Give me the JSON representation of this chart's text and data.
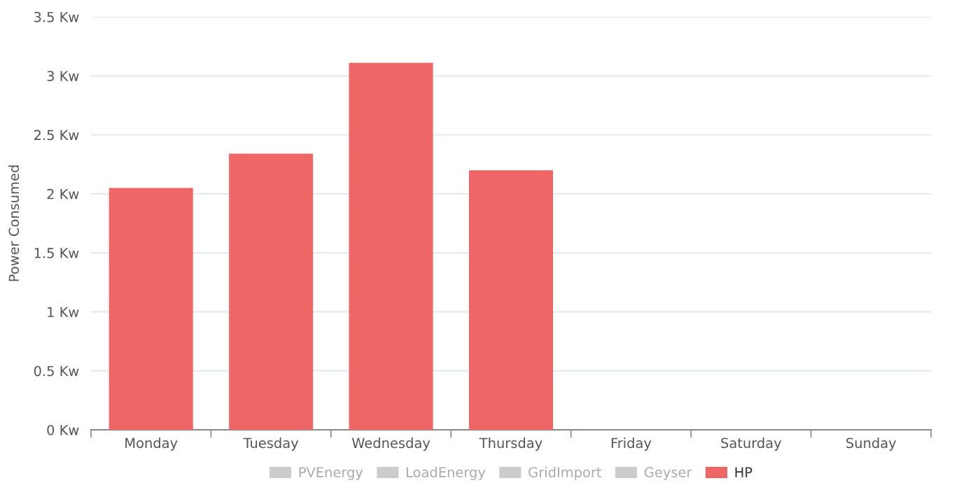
{
  "chart_data": {
    "type": "bar",
    "ylabel": "Power Consumed",
    "categories": [
      "Monday",
      "Tuesday",
      "Wednesday",
      "Thursday",
      "Friday",
      "Saturday",
      "Sunday"
    ],
    "series": [
      {
        "name": "PVEnergy",
        "color": "#cccccc",
        "values": [
          null,
          null,
          null,
          null,
          null,
          null,
          null
        ]
      },
      {
        "name": "LoadEnergy",
        "color": "#cccccc",
        "values": [
          null,
          null,
          null,
          null,
          null,
          null,
          null
        ]
      },
      {
        "name": "GridImport",
        "color": "#cccccc",
        "values": [
          null,
          null,
          null,
          null,
          null,
          null,
          null
        ]
      },
      {
        "name": "Geyser",
        "color": "#cccccc",
        "values": [
          null,
          null,
          null,
          null,
          null,
          null,
          null
        ]
      },
      {
        "name": "HP",
        "color": "#ee6666",
        "values": [
          2.05,
          2.34,
          3.11,
          2.2,
          null,
          null,
          null
        ]
      }
    ],
    "ylim": [
      0,
      3.5
    ],
    "yticks": [
      {
        "value": 0,
        "label": "0 Kw"
      },
      {
        "value": 0.5,
        "label": "0.5 Kw"
      },
      {
        "value": 1,
        "label": "1 Kw"
      },
      {
        "value": 1.5,
        "label": "1.5 Kw"
      },
      {
        "value": 2,
        "label": "2 Kw"
      },
      {
        "value": 2.5,
        "label": "2.5 Kw"
      },
      {
        "value": 3,
        "label": "3 Kw"
      },
      {
        "value": 3.5,
        "label": "3.5 Kw"
      }
    ],
    "grid": "y",
    "legend": "bottom"
  }
}
